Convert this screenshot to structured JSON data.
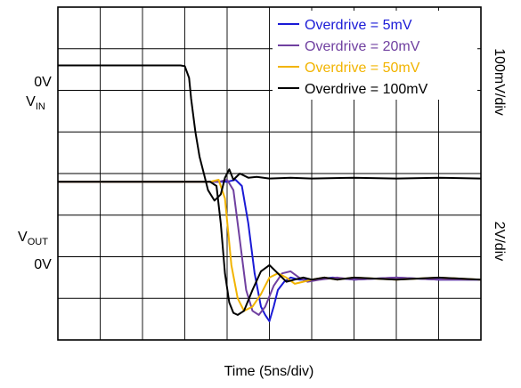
{
  "chart_data": {
    "type": "line",
    "title": "",
    "xlabel": "Time (5ns/div)",
    "x_unit": "div",
    "xlim": [
      0,
      10
    ],
    "ylim": [
      -4,
      4
    ],
    "grid": true,
    "grid_divisions": {
      "x": 10,
      "y": 8
    },
    "left_labels": {
      "vin_zero": "0V",
      "vin_main": "V",
      "vin_sub": "IN",
      "vout_main": "V",
      "vout_sub": "OUT",
      "vout_zero": "0V"
    },
    "right_scale_labels": {
      "top": "100mV/div",
      "bottom": "2V/div"
    },
    "legend": {
      "placement": "top-right",
      "entries": [
        {
          "label": "Overdrive = 5mV",
          "color": "#1a1ad6"
        },
        {
          "label": "Overdrive = 20mV",
          "color": "#7040a0"
        },
        {
          "label": "Overdrive = 50mV",
          "color": "#f2b400"
        },
        {
          "label": "Overdrive = 100mV",
          "color": "#000000"
        }
      ]
    },
    "series": [
      {
        "name": "VIN",
        "color": "#000000",
        "x": [
          0,
          1,
          2,
          2.9,
          3.0,
          3.1,
          3.15,
          3.25,
          3.35,
          3.45,
          3.55,
          3.7,
          3.85,
          3.95,
          4.05,
          4.15,
          4.3,
          4.5,
          4.7,
          5.0,
          5.5,
          6.0,
          7.0,
          8.0,
          9.0,
          10.0
        ],
        "y": [
          2.6,
          2.6,
          2.6,
          2.6,
          2.58,
          2.3,
          1.8,
          1.0,
          0.4,
          0.0,
          -0.4,
          -0.65,
          -0.5,
          -0.1,
          0.1,
          -0.15,
          0.0,
          -0.1,
          -0.08,
          -0.12,
          -0.1,
          -0.12,
          -0.1,
          -0.12,
          -0.1,
          -0.12
        ]
      },
      {
        "name": "Overdrive = 5mV",
        "color": "#1a1ad6",
        "x": [
          0,
          2,
          4,
          4.2,
          4.35,
          4.5,
          4.65,
          4.8,
          4.9,
          5.0,
          5.1,
          5.2,
          5.35,
          5.5,
          5.7,
          6.0,
          6.5,
          7.0,
          8.0,
          9.0,
          10.0
        ],
        "y": [
          -0.2,
          -0.2,
          -0.2,
          -0.15,
          -0.3,
          -1.2,
          -2.4,
          -3.2,
          -3.4,
          -3.55,
          -3.2,
          -2.8,
          -2.6,
          -2.5,
          -2.55,
          -2.55,
          -2.5,
          -2.55,
          -2.5,
          -2.55,
          -2.55
        ]
      },
      {
        "name": "Overdrive = 20mV",
        "color": "#7040a0",
        "x": [
          0,
          2,
          3.8,
          4.0,
          4.15,
          4.3,
          4.45,
          4.6,
          4.75,
          4.9,
          5.1,
          5.3,
          5.5,
          5.7,
          5.9,
          6.2,
          6.6,
          7.0,
          8.0,
          9.0,
          10.0
        ],
        "y": [
          -0.2,
          -0.2,
          -0.2,
          -0.15,
          -0.4,
          -1.6,
          -2.8,
          -3.3,
          -3.4,
          -3.2,
          -2.7,
          -2.4,
          -2.35,
          -2.5,
          -2.6,
          -2.55,
          -2.5,
          -2.55,
          -2.5,
          -2.55,
          -2.55
        ]
      },
      {
        "name": "Overdrive = 50mV",
        "color": "#f2b400",
        "x": [
          0,
          2,
          3.6,
          3.8,
          3.95,
          4.1,
          4.25,
          4.4,
          4.6,
          4.8,
          5.0,
          5.2,
          5.4,
          5.6,
          5.8,
          6.0,
          6.3,
          6.6,
          7.0,
          8.0,
          9.0,
          10.0
        ],
        "y": [
          -0.2,
          -0.2,
          -0.2,
          -0.15,
          -0.6,
          -2.2,
          -3.0,
          -3.3,
          -3.2,
          -2.9,
          -2.5,
          -2.4,
          -2.5,
          -2.65,
          -2.6,
          -2.55,
          -2.5,
          -2.55,
          -2.5,
          -2.55,
          -2.5,
          -2.55
        ]
      },
      {
        "name": "Overdrive = 100mV",
        "color": "#000000",
        "x": [
          0,
          2,
          3.6,
          3.75,
          3.85,
          3.95,
          4.05,
          4.15,
          4.25,
          4.4,
          4.6,
          4.8,
          5.0,
          5.2,
          5.4,
          5.6,
          5.8,
          6.0,
          6.3,
          6.6,
          7.0,
          8.0,
          9.0,
          10.0
        ],
        "y": [
          -0.2,
          -0.2,
          -0.2,
          -0.3,
          -1.2,
          -2.4,
          -3.1,
          -3.35,
          -3.4,
          -3.3,
          -2.8,
          -2.35,
          -2.2,
          -2.4,
          -2.6,
          -2.55,
          -2.5,
          -2.55,
          -2.5,
          -2.55,
          -2.5,
          -2.55,
          -2.5,
          -2.55
        ]
      }
    ]
  }
}
